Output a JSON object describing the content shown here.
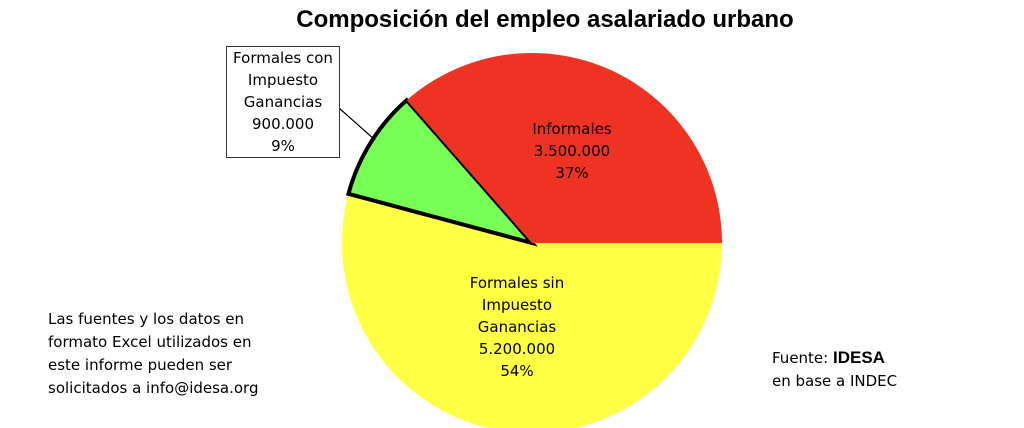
{
  "chart_data": {
    "type": "pie",
    "title": "Composición del empleo asalariado urbano",
    "categories": [
      "Formales sin Impuesto Ganancias",
      "Formales con Impuesto Ganancias",
      "Informales"
    ],
    "values": [
      5200000,
      900000,
      3500000
    ],
    "value_labels": [
      "5.200.000",
      "900.000",
      "3.500.000"
    ],
    "percents": [
      54,
      9,
      37
    ],
    "percent_labels": [
      "54%",
      "9%",
      "37%"
    ],
    "colors": [
      "#ffff44",
      "#77ff55",
      "#ee3322"
    ],
    "note": "Las fuentes y los datos en formato Excel utilizados en este informe pueden ser solicitados a info@idesa.org",
    "source_prefix": "Fuente:",
    "source_name": "IDESA",
    "source_detail": "en base a INDEC"
  }
}
